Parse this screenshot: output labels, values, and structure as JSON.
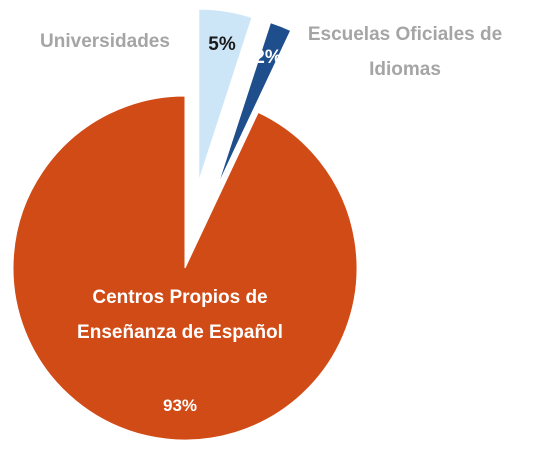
{
  "chart_data": {
    "type": "pie",
    "categories": [
      "Universidades",
      "Escuelas Oficiales de Idiomas",
      "Centros Propios de Enseñanza de Español"
    ],
    "values": [
      5,
      2,
      93
    ],
    "value_labels": [
      "5%",
      "2%",
      "93%"
    ],
    "colors": [
      "#cde6f7",
      "#1f4e8c",
      "#d14b16"
    ]
  }
}
